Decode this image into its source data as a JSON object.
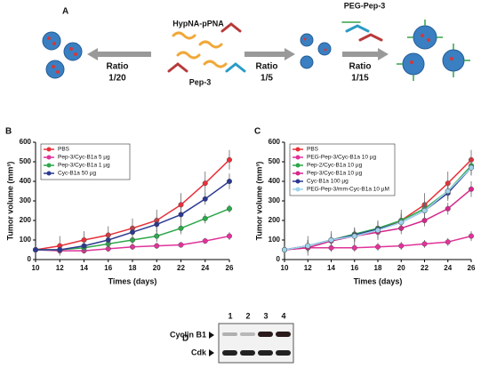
{
  "panel_a": {
    "label": "A",
    "probe": "HypNA-pPNA",
    "carrier": "Pep-3",
    "peg": "PEG-Pep-3",
    "ratio_left": {
      "word": "Ratio",
      "value": "1/20"
    },
    "ratio_mid": {
      "word": "Ratio",
      "value": "1/5"
    },
    "ratio_right": {
      "word": "Ratio",
      "value": "1/15"
    }
  },
  "chart_data": [
    {
      "type": "line",
      "panel_label": "B",
      "xlabel": "Times (days)",
      "ylabel": "Tumor volume (mm³)",
      "x": [
        10,
        12,
        14,
        16,
        18,
        20,
        22,
        24,
        26
      ],
      "xlim": [
        10,
        26
      ],
      "xticks": [
        10,
        12,
        14,
        16,
        18,
        20,
        22,
        24,
        26
      ],
      "ylim": [
        0,
        600
      ],
      "yticks": [
        0,
        100,
        200,
        300,
        400,
        500,
        600
      ],
      "series": [
        {
          "name": "PBS",
          "color": "#e8303a",
          "values": [
            50,
            70,
            100,
            125,
            160,
            200,
            280,
            390,
            510
          ],
          "errors": [
            15,
            50,
            45,
            45,
            50,
            55,
            60,
            60,
            50
          ]
        },
        {
          "name": "Pep-3/Cyc-B1a 5 µg",
          "color": "#e0339a",
          "values": [
            50,
            45,
            45,
            55,
            65,
            70,
            75,
            95,
            120
          ],
          "errors": [
            10,
            15,
            15,
            15,
            15,
            15,
            15,
            15,
            20
          ]
        },
        {
          "name": "Pep-3/Cyc-B1a 1 µg",
          "color": "#2ca84a",
          "values": [
            50,
            50,
            60,
            80,
            100,
            120,
            160,
            210,
            260
          ],
          "errors": [
            10,
            20,
            25,
            25,
            25,
            30,
            30,
            25,
            20
          ]
        },
        {
          "name": "Cyc-B1a 50 µg",
          "color": "#2b3990",
          "values": [
            50,
            50,
            70,
            100,
            140,
            180,
            230,
            310,
            400
          ],
          "errors": [
            10,
            20,
            25,
            30,
            35,
            40,
            40,
            30,
            40
          ]
        }
      ]
    },
    {
      "type": "line",
      "panel_label": "C",
      "xlabel": "Times (days)",
      "ylabel": "Tumor volume (mm³)",
      "x": [
        10,
        12,
        14,
        16,
        18,
        20,
        22,
        24,
        26
      ],
      "xlim": [
        10,
        26
      ],
      "xticks": [
        10,
        12,
        14,
        16,
        18,
        20,
        22,
        24,
        26
      ],
      "ylim": [
        0,
        600
      ],
      "yticks": [
        0,
        100,
        200,
        300,
        400,
        500,
        600
      ],
      "series": [
        {
          "name": "PBS",
          "color": "#e8303a",
          "values": [
            50,
            70,
            100,
            120,
            150,
            200,
            280,
            390,
            510
          ],
          "errors": [
            15,
            50,
            45,
            45,
            50,
            55,
            60,
            60,
            50
          ]
        },
        {
          "name": "PEG-Pep-3/Cyc-B1a 10 µg",
          "color": "#e0339a",
          "values": [
            50,
            60,
            60,
            60,
            65,
            70,
            80,
            90,
            120
          ],
          "errors": [
            10,
            15,
            20,
            20,
            20,
            20,
            20,
            20,
            25
          ]
        },
        {
          "name": "Pep-2/Cyc-B1a 10 µg",
          "color": "#2ca84a",
          "values": [
            50,
            70,
            100,
            130,
            160,
            200,
            260,
            350,
            480
          ],
          "errors": [
            10,
            30,
            30,
            30,
            35,
            40,
            40,
            40,
            40
          ]
        },
        {
          "name": "Pep-3/Cyc-B1a 10 µg",
          "color": "#d6278c",
          "values": [
            50,
            60,
            95,
            120,
            140,
            160,
            200,
            260,
            360
          ],
          "errors": [
            10,
            25,
            30,
            30,
            30,
            30,
            30,
            30,
            40
          ]
        },
        {
          "name": "Cyc-B1a 100 µg",
          "color": "#2b3990",
          "values": [
            50,
            70,
            100,
            125,
            155,
            190,
            250,
            340,
            470
          ],
          "errors": [
            10,
            30,
            30,
            30,
            35,
            40,
            40,
            40,
            40
          ]
        },
        {
          "name": "PEG-Pep-3/mm-Cyc-B1a 10 µM",
          "color": "#9fd3ec",
          "values": [
            50,
            70,
            100,
            120,
            150,
            190,
            250,
            350,
            470
          ],
          "errors": [
            10,
            30,
            30,
            30,
            35,
            40,
            40,
            40,
            40
          ]
        }
      ]
    }
  ],
  "panel_d": {
    "label": "D",
    "lanes": [
      "1",
      "2",
      "3",
      "4"
    ],
    "band_top": "Cyclin B1",
    "band_bottom": "Cdk"
  }
}
